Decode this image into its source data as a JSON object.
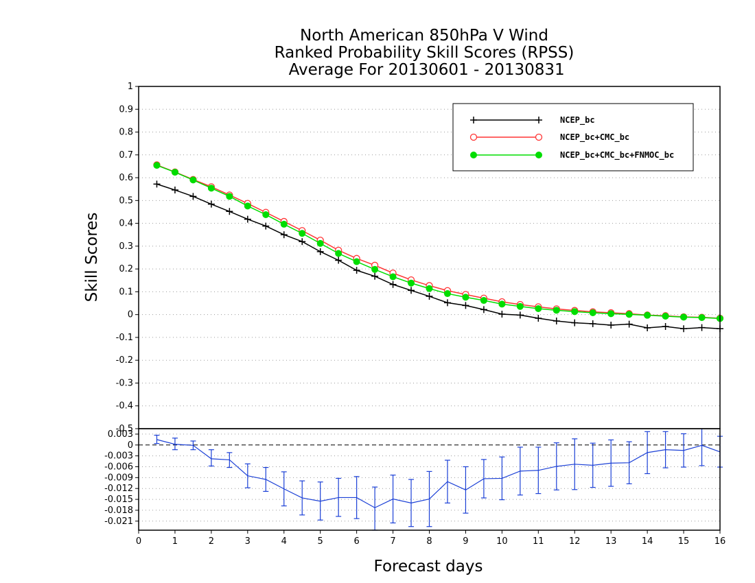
{
  "chart_data": [
    {
      "type": "line",
      "title": [
        "North American 850hPa V Wind",
        "Ranked Probability Skill Scores (RPSS)",
        " Average For 20130601 - 20130831"
      ],
      "ylabel": "Skill Scores",
      "xlim": [
        0,
        16
      ],
      "ylim": [
        -0.5,
        1
      ],
      "yticks": [
        "1",
        "0.9",
        "0.8",
        "0.7",
        "0.6",
        "0.5",
        "0.4",
        "0.3",
        "0.2",
        "0.1",
        "0",
        "-0.1",
        "-0.2",
        "-0.3",
        "-0.4",
        "-0.5"
      ],
      "ytick_values": [
        1,
        0.9,
        0.8,
        0.7,
        0.6,
        0.5,
        0.4,
        0.3,
        0.2,
        0.1,
        0,
        -0.1,
        -0.2,
        -0.3,
        -0.4,
        -0.5
      ],
      "grid": true,
      "legend_position": "top-right",
      "x": [
        0.5,
        1,
        1.5,
        2,
        2.5,
        3,
        3.5,
        4,
        4.5,
        5,
        5.5,
        6,
        6.5,
        7,
        7.5,
        8,
        8.5,
        9,
        9.5,
        10,
        10.5,
        11,
        11.5,
        12,
        12.5,
        13,
        13.5,
        14,
        14.5,
        15,
        15.5,
        16
      ],
      "series": [
        {
          "name": "NCEP_bc",
          "color": "#000000",
          "marker": "plus",
          "values": [
            0.572,
            0.546,
            0.518,
            0.484,
            0.452,
            0.418,
            0.388,
            0.35,
            0.32,
            0.276,
            0.238,
            0.194,
            0.168,
            0.132,
            0.106,
            0.08,
            0.052,
            0.04,
            0.022,
            0.002,
            -0.002,
            -0.016,
            -0.028,
            -0.036,
            -0.04,
            -0.046,
            -0.042,
            -0.058,
            -0.052,
            -0.062,
            -0.057,
            -0.062
          ]
        },
        {
          "name": "NCEP_bc+CMC_bc",
          "color": "#ff3333",
          "marker": "open-circle",
          "values": [
            0.656,
            0.625,
            0.592,
            0.56,
            0.524,
            0.487,
            0.448,
            0.408,
            0.368,
            0.326,
            0.282,
            0.246,
            0.216,
            0.182,
            0.152,
            0.127,
            0.105,
            0.088,
            0.072,
            0.056,
            0.044,
            0.034,
            0.025,
            0.018,
            0.012,
            0.008,
            0.004,
            -0.002,
            -0.005,
            -0.01,
            -0.012,
            -0.016
          ]
        },
        {
          "name": "NCEP_bc+CMC_bc+FNMOC_bc",
          "color": "#00dd00",
          "marker": "filled-circle",
          "values": [
            0.654,
            0.624,
            0.59,
            0.554,
            0.518,
            0.476,
            0.438,
            0.396,
            0.356,
            0.312,
            0.268,
            0.232,
            0.198,
            0.166,
            0.138,
            0.114,
            0.092,
            0.076,
            0.062,
            0.046,
            0.036,
            0.026,
            0.019,
            0.013,
            0.008,
            0.004,
            0.001,
            -0.003,
            -0.007,
            -0.011,
            -0.013,
            -0.017
          ]
        }
      ]
    },
    {
      "type": "line",
      "xlabel": "Forecast days",
      "xlim": [
        0,
        16
      ],
      "xticks": [
        "0",
        "1",
        "2",
        "3",
        "4",
        "5",
        "6",
        "7",
        "8",
        "9",
        "10",
        "11",
        "12",
        "13",
        "14",
        "15",
        "16"
      ],
      "ylim": [
        -0.0235,
        0.0045
      ],
      "yticks": [
        "0.003",
        "0",
        "-0.003",
        "-0.006",
        "-0.009",
        "-0.012",
        "-0.015",
        "-0.018",
        "-0.021"
      ],
      "ytick_values": [
        0.003,
        0,
        -0.003,
        -0.006,
        -0.009,
        -0.012,
        -0.015,
        -0.018,
        -0.021
      ],
      "grid": true,
      "reference_line": 0,
      "series": [
        {
          "color": "#1a3fd6",
          "marker": "error-bar",
          "x": [
            0.5,
            1,
            1.5,
            2,
            2.5,
            3,
            3.5,
            4,
            4.5,
            5,
            5.5,
            6,
            6.5,
            7,
            7.5,
            8,
            8.5,
            9,
            9.5,
            10,
            10.5,
            11,
            11.5,
            12,
            12.5,
            13,
            13.5,
            14,
            14.5,
            15,
            15.5,
            16
          ],
          "values": [
            0.0015,
            0.0002,
            -0.0001,
            -0.0038,
            -0.0041,
            -0.0085,
            -0.0095,
            -0.0121,
            -0.0146,
            -0.0155,
            -0.0145,
            -0.0145,
            -0.0173,
            -0.0149,
            -0.016,
            -0.0149,
            -0.0101,
            -0.0124,
            -0.0093,
            -0.0092,
            -0.0072,
            -0.007,
            -0.0059,
            -0.0053,
            -0.0056,
            -0.005,
            -0.0049,
            -0.0021,
            -0.0013,
            -0.0015,
            -0.0001,
            -0.0019
          ],
          "err_low": [
            0.0004,
            -0.0013,
            -0.0013,
            -0.0058,
            -0.0062,
            -0.0118,
            -0.0128,
            -0.0168,
            -0.0193,
            -0.0207,
            -0.0197,
            -0.0203,
            -0.0235,
            -0.0215,
            -0.0225,
            -0.0225,
            -0.016,
            -0.0188,
            -0.0146,
            -0.0151,
            -0.0138,
            -0.0134,
            -0.0124,
            -0.0123,
            -0.0117,
            -0.0114,
            -0.0107,
            -0.0079,
            -0.0063,
            -0.0061,
            -0.0057,
            -0.0061
          ],
          "err_high": [
            0.0027,
            0.0019,
            0.0011,
            -0.0013,
            -0.0021,
            -0.0052,
            -0.0062,
            -0.0074,
            -0.0099,
            -0.0102,
            -0.0092,
            -0.0087,
            -0.0116,
            -0.0083,
            -0.0095,
            -0.0073,
            -0.0042,
            -0.006,
            -0.004,
            -0.0033,
            -0.0006,
            -0.0006,
            0.0006,
            0.0017,
            0.0005,
            0.0014,
            0.0009,
            0.0037,
            0.0037,
            0.0031,
            0.0055,
            0.0024
          ]
        }
      ]
    }
  ]
}
